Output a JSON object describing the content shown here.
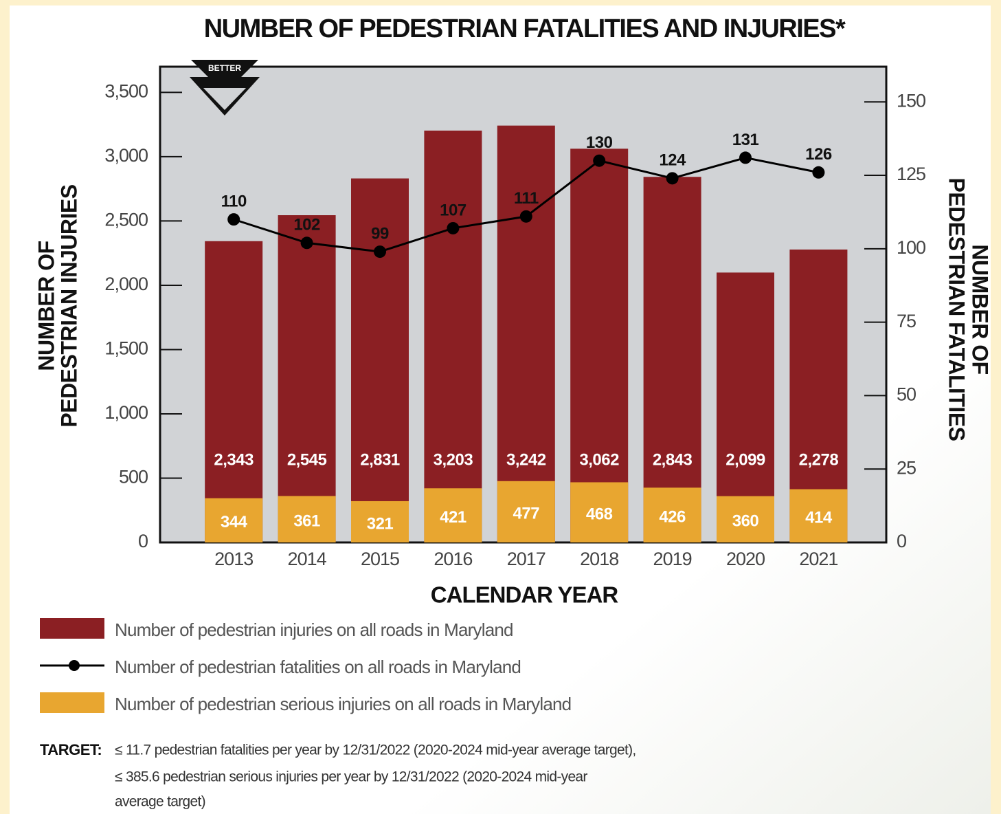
{
  "chart_data": {
    "type": "bar",
    "title": "NUMBER OF PEDESTRIAN FATALITIES AND INJURIES*",
    "annotation": "BETTER",
    "xlabel": "CALENDAR YEAR",
    "ylabel": [
      "NUMBER OF",
      "PEDESTRIAN INJURIES"
    ],
    "y2label": [
      "NUMBER OF",
      "PEDESTRIAN FATALITIES"
    ],
    "categories": [
      "2013",
      "2014",
      "2015",
      "2016",
      "2017",
      "2018",
      "2019",
      "2020",
      "2021"
    ],
    "ylim": [
      0,
      3700
    ],
    "yticks": [
      0,
      500,
      {
        "value": 1000,
        "label": "1,000"
      },
      {
        "value": 1500,
        "label": "1,500"
      },
      {
        "value": 2000,
        "label": "2,000"
      },
      {
        "value": 2500,
        "label": "2,500"
      },
      {
        "value": 3000,
        "label": "3,000"
      },
      {
        "value": 3500,
        "label": "3,500"
      }
    ],
    "y2lim": [
      0,
      162
    ],
    "y2ticks": [
      0,
      25,
      50,
      75,
      100,
      125,
      150
    ],
    "series": [
      {
        "name": "Number of pedestrian injuries on all roads in Maryland",
        "type": "bar",
        "color": "#8b1f23",
        "values": [
          2343,
          2545,
          2831,
          3203,
          3242,
          3062,
          2843,
          2099,
          2278
        ],
        "value_labels": [
          "2,343",
          "2,545",
          "2,831",
          "3,203",
          "3,242",
          "3,062",
          "2,843",
          "2,099",
          "2,278"
        ]
      },
      {
        "name": "Number of pedestrian fatalities on all roads in Maryland",
        "type": "line",
        "axis": "y2",
        "color": "#000000",
        "values": [
          110,
          102,
          99,
          107,
          111,
          130,
          124,
          131,
          126
        ]
      },
      {
        "name": "Number of pedestrian serious injuries on all roads in Maryland",
        "type": "bar",
        "color": "#e8a630",
        "values": [
          344,
          361,
          321,
          421,
          477,
          468,
          426,
          360,
          414
        ]
      }
    ],
    "target": {
      "label": "TARGET:",
      "lines": [
        "≤ 11.7 pedestrian fatalities per year by 12/31/2022 (2020-2024 mid-year average target),",
        "≤ 385.6 pedestrian serious injuries per year by 12/31/2022 (2020-2024 mid-year",
        "average target)"
      ]
    }
  }
}
